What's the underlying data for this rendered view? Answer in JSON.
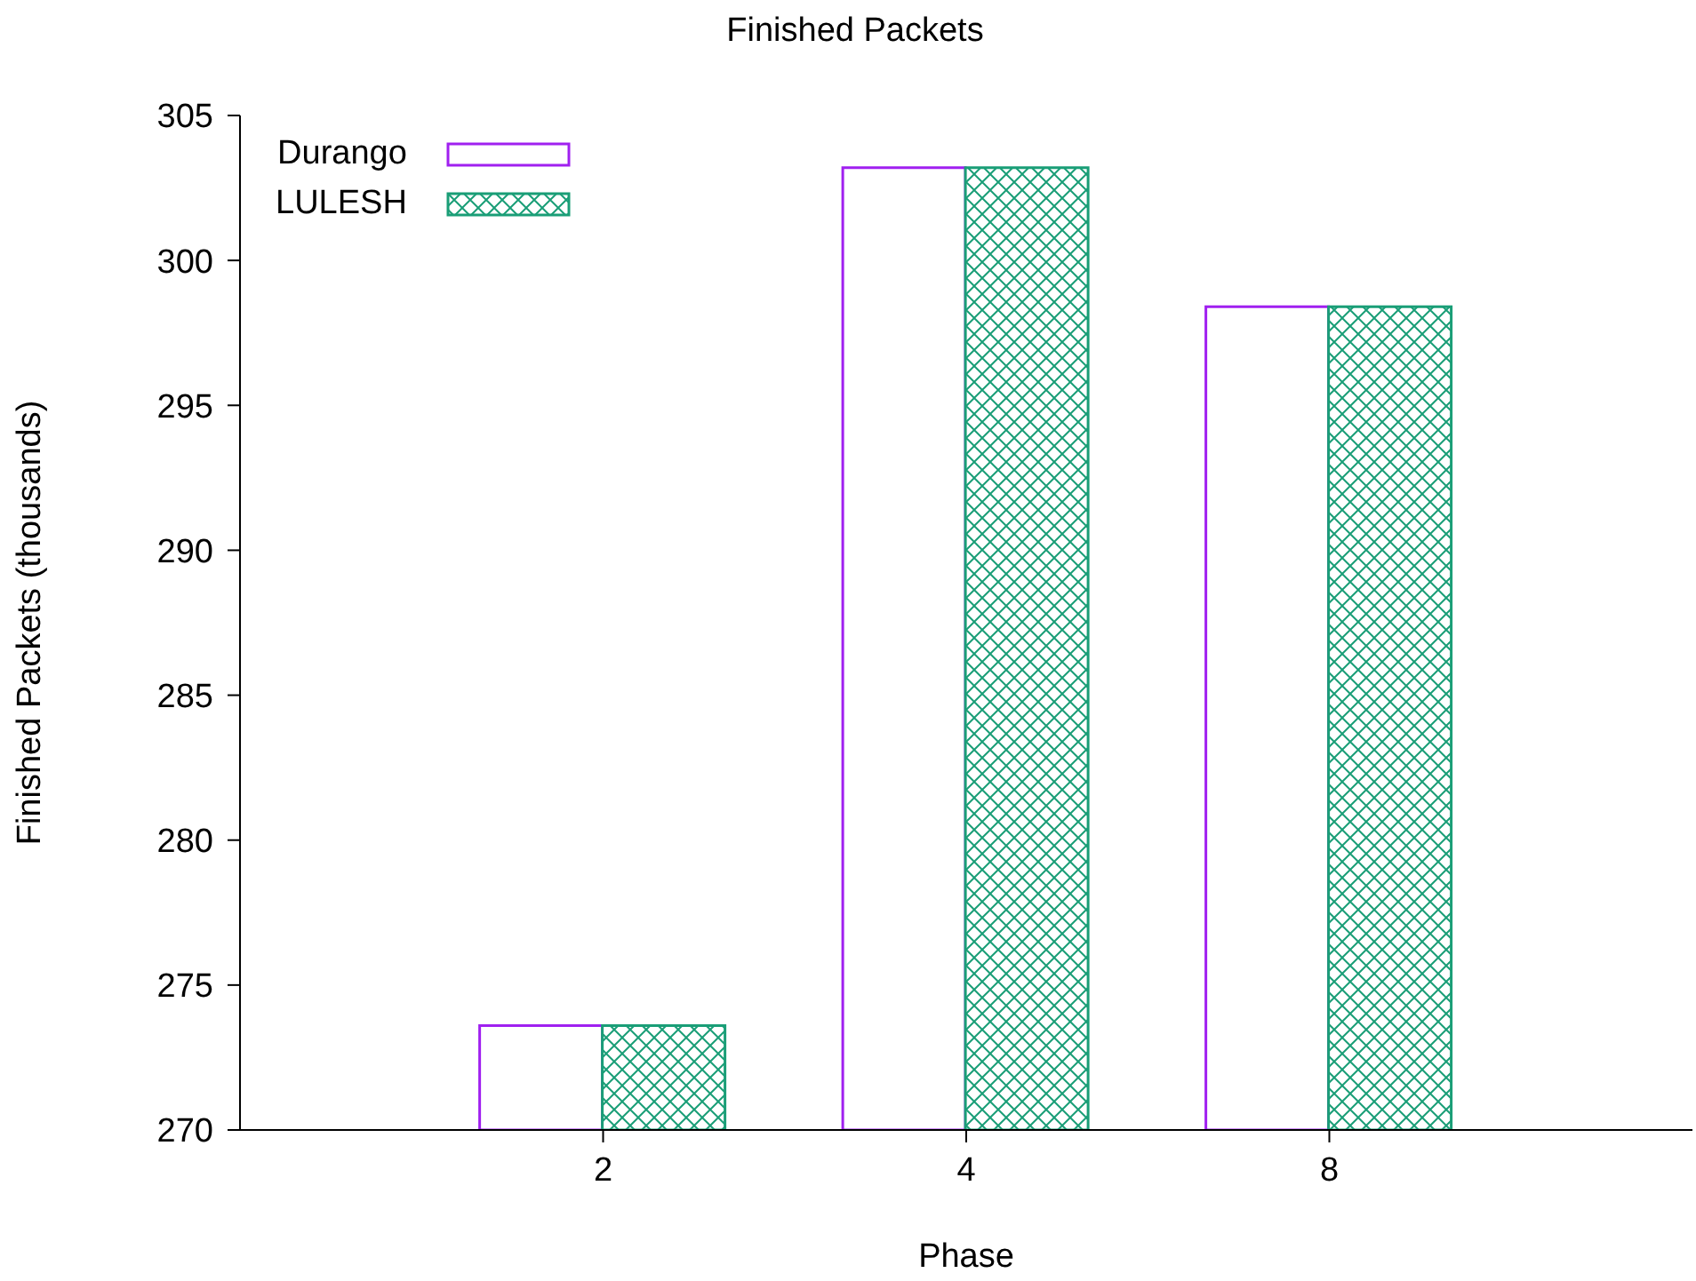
{
  "chart_data": {
    "type": "bar",
    "title": "Finished Packets",
    "xlabel": "Phase",
    "ylabel": "Finished Packets (thousands)",
    "categories": [
      "2",
      "4",
      "8"
    ],
    "series": [
      {
        "name": "Durango",
        "color": "#a020f0",
        "values": [
          273.6,
          303.2,
          298.4
        ]
      },
      {
        "name": "LULESH",
        "color": "#1a9e77",
        "values": [
          273.6,
          303.2,
          298.4
        ]
      }
    ],
    "ylim": [
      270,
      305
    ],
    "yticks": [
      270,
      275,
      280,
      285,
      290,
      295,
      300,
      305
    ],
    "legend": "top left"
  }
}
